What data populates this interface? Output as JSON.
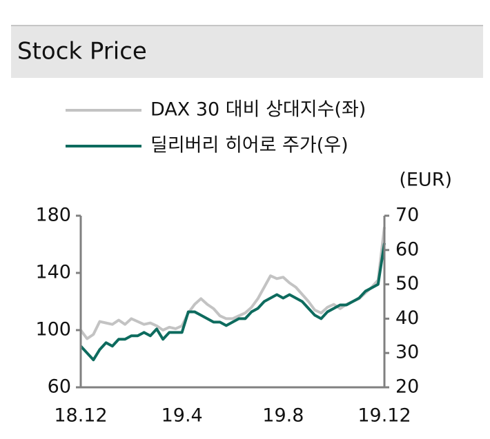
{
  "chart_data": {
    "type": "line",
    "title": "Stock Price",
    "y2label": "(EUR)",
    "categories": [
      "18.12",
      null,
      null,
      null,
      null,
      null,
      null,
      null,
      null,
      null,
      null,
      null,
      null,
      null,
      null,
      null,
      "19.4",
      null,
      null,
      null,
      null,
      null,
      null,
      null,
      null,
      null,
      null,
      null,
      null,
      null,
      null,
      null,
      "19.8",
      null,
      null,
      null,
      null,
      null,
      null,
      null,
      null,
      null,
      null,
      null,
      null,
      null,
      null,
      null,
      "19.12"
    ],
    "series": [
      {
        "name": "DAX 30 대비 상대지수(좌)",
        "color": "#c3c3c3",
        "axis": "y",
        "values": [
          100,
          94,
          97,
          106,
          105,
          104,
          107,
          104,
          108,
          106,
          104,
          105,
          103,
          100,
          102,
          101,
          103,
          112,
          118,
          122,
          118,
          115,
          110,
          108,
          108,
          110,
          112,
          116,
          122,
          130,
          138,
          136,
          137,
          133,
          130,
          125,
          120,
          114,
          112,
          116,
          118,
          115,
          118,
          120,
          122,
          126,
          130,
          135,
          172
        ]
      },
      {
        "name": "딜리버리 히어로 주가(우)",
        "color": "#0d6b5e",
        "axis": "y2",
        "values": [
          32,
          30,
          28,
          31,
          33,
          32,
          34,
          34,
          35,
          35,
          36,
          35,
          37,
          34,
          36,
          36,
          36,
          42,
          42,
          41,
          40,
          39,
          39,
          38,
          39,
          40,
          40,
          42,
          43,
          45,
          46,
          47,
          46,
          47,
          46,
          45,
          43,
          41,
          40,
          42,
          43,
          44,
          44,
          45,
          46,
          48,
          49,
          50,
          62
        ]
      }
    ],
    "ylim": [
      60,
      180
    ],
    "yticks": [
      60,
      100,
      140,
      180
    ],
    "y2lim": [
      20,
      70
    ],
    "y2ticks": [
      20,
      30,
      40,
      50,
      60,
      70
    ]
  }
}
